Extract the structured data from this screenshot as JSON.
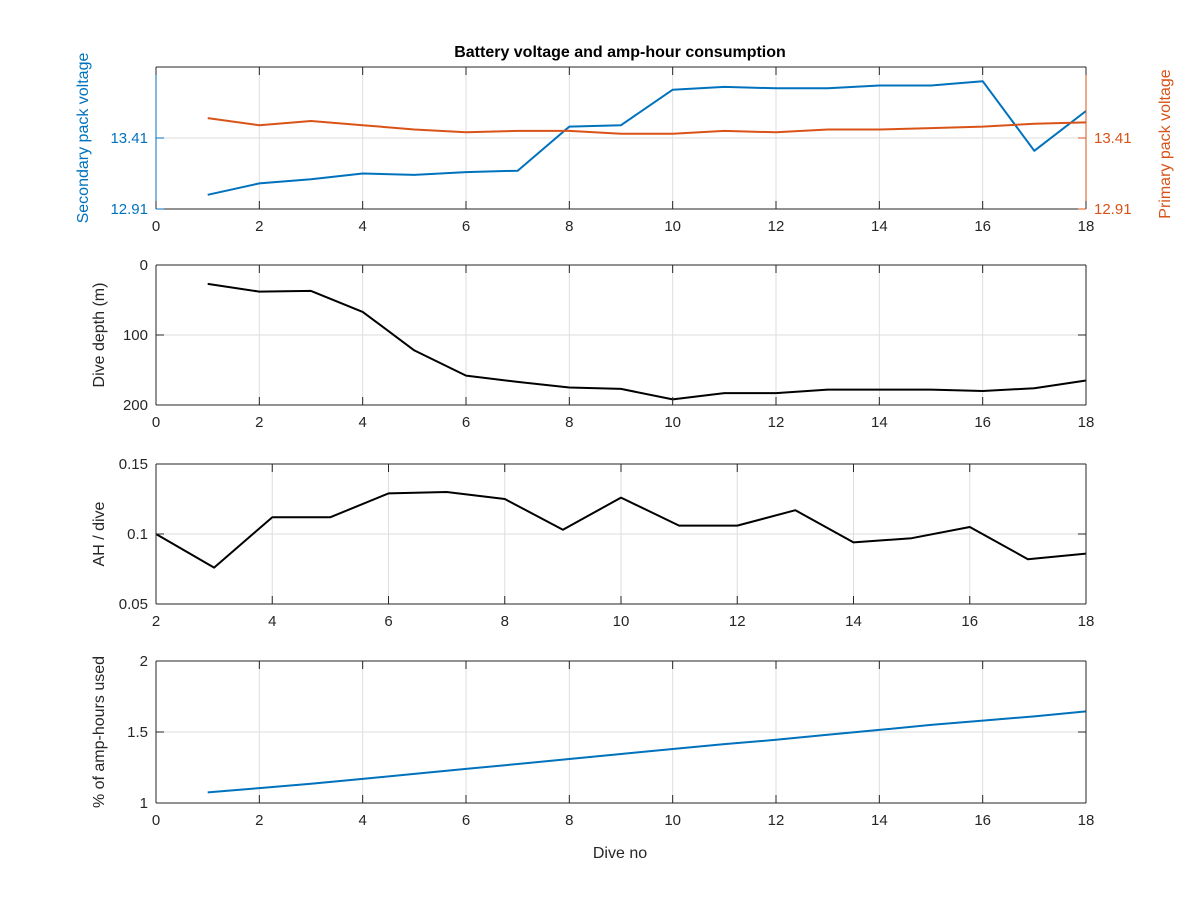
{
  "title": "Battery voltage and amp-hour consumption",
  "xlabel_bottom": "Dive no",
  "colors": {
    "blue": "#0072BD",
    "orange": "#D95319",
    "black": "#000000",
    "grid": "#dedede"
  },
  "chart_data": [
    {
      "type": "line",
      "ylabel_left": "Secondary pack voltage",
      "ylabel_right": "Primary pack voltage",
      "xlim": [
        0,
        18
      ],
      "xticks": [
        0,
        2,
        4,
        6,
        8,
        10,
        12,
        14,
        16,
        18
      ],
      "ylim": [
        12.91,
        13.91
      ],
      "yticks_left": [
        12.91,
        13.41
      ],
      "yticks_right": [
        12.91,
        13.41
      ],
      "grid": true,
      "series": [
        {
          "color": "#0072BD",
          "axis": "left",
          "x": [
            1,
            2,
            3,
            4,
            5,
            6,
            7,
            8,
            9,
            10,
            11,
            12,
            13,
            14,
            15,
            16,
            17,
            18
          ],
          "y": [
            13.01,
            13.09,
            13.12,
            13.16,
            13.15,
            13.17,
            13.18,
            13.49,
            13.5,
            13.75,
            13.77,
            13.76,
            13.76,
            13.78,
            13.78,
            13.81,
            13.32,
            13.6
          ]
        },
        {
          "color": "#D95319",
          "axis": "right",
          "x": [
            1,
            2,
            3,
            4,
            5,
            6,
            7,
            8,
            9,
            10,
            11,
            12,
            13,
            14,
            15,
            16,
            17,
            18
          ],
          "y": [
            13.55,
            13.5,
            13.53,
            13.5,
            13.47,
            13.45,
            13.46,
            13.46,
            13.44,
            13.44,
            13.46,
            13.45,
            13.47,
            13.47,
            13.48,
            13.49,
            13.51,
            13.52
          ]
        }
      ]
    },
    {
      "type": "line",
      "ylabel": "Dive depth (m)",
      "xlim": [
        0,
        18
      ],
      "xticks": [
        0,
        2,
        4,
        6,
        8,
        10,
        12,
        14,
        16,
        18
      ],
      "ylim": [
        0,
        200
      ],
      "y_reversed": true,
      "yticks": [
        0,
        100,
        200
      ],
      "grid": true,
      "series": [
        {
          "color": "#000000",
          "x": [
            1,
            2,
            3,
            4,
            5,
            6,
            7,
            8,
            9,
            10,
            11,
            12,
            13,
            14,
            15,
            16,
            17,
            18
          ],
          "y": [
            27,
            38,
            37,
            67,
            122,
            158,
            167,
            175,
            177,
            192,
            183,
            183,
            178,
            178,
            178,
            180,
            176,
            165
          ]
        }
      ]
    },
    {
      "type": "line",
      "ylabel": "AH / dive",
      "xlim": [
        2,
        18
      ],
      "xticks": [
        2,
        4,
        6,
        8,
        10,
        12,
        14,
        16,
        18
      ],
      "ylim": [
        0.05,
        0.15
      ],
      "yticks": [
        0.05,
        0.1,
        0.15
      ],
      "grid": true,
      "series": [
        {
          "color": "#000000",
          "x": [
            2,
            3,
            4,
            5,
            6,
            7,
            8,
            9,
            10,
            11,
            12,
            13,
            14,
            15,
            16,
            17,
            18
          ],
          "y": [
            0.1,
            0.076,
            0.112,
            0.112,
            0.129,
            0.13,
            0.125,
            0.103,
            0.126,
            0.106,
            0.106,
            0.117,
            0.094,
            0.097,
            0.105,
            0.082,
            0.086
          ]
        }
      ]
    },
    {
      "type": "line",
      "ylabel": "% of amp-hours used",
      "xlabel": "Dive no",
      "xlim": [
        0,
        18
      ],
      "xticks": [
        0,
        2,
        4,
        6,
        8,
        10,
        12,
        14,
        16,
        18
      ],
      "ylim": [
        1,
        2
      ],
      "yticks": [
        1,
        1.5,
        2
      ],
      "grid": true,
      "series": [
        {
          "color": "#0072BD",
          "x": [
            1,
            2,
            3,
            4,
            5,
            6,
            7,
            8,
            9,
            10,
            11,
            12,
            13,
            14,
            15,
            16,
            17,
            18
          ],
          "y": [
            1.075,
            1.105,
            1.135,
            1.17,
            1.205,
            1.24,
            1.275,
            1.31,
            1.345,
            1.38,
            1.415,
            1.445,
            1.48,
            1.515,
            1.55,
            1.58,
            1.61,
            1.645
          ]
        }
      ]
    }
  ]
}
